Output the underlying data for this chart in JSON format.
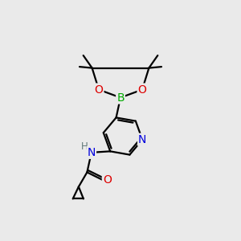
{
  "background_color": "#eaeaea",
  "atom_colors": {
    "C": "#000000",
    "H": "#607878",
    "N": "#0000dd",
    "O": "#dd0000",
    "B": "#00aa00"
  },
  "bond_color": "#000000",
  "bond_width": 1.6,
  "font_size_atoms": 8.5,
  "figsize": [
    3.0,
    3.0
  ],
  "dpi": 100
}
